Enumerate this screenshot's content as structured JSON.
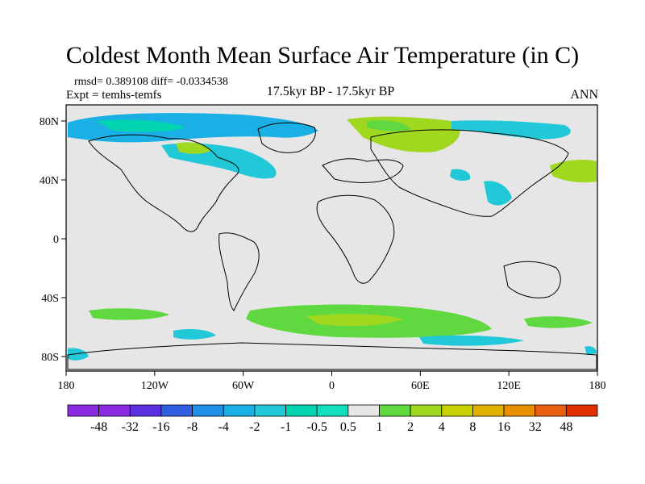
{
  "title": "Coldest Month Mean Surface Air Temperature (in C)",
  "stats": {
    "rmsd_diff": "rmsd= 0.389108 diff= -0.0334538",
    "expt": "Expt = temhs-temfs"
  },
  "subtitle_center": "17.5kyr BP - 17.5kyr BP",
  "subtitle_right": "ANN",
  "map": {
    "lon_labels": [
      "180",
      "120W",
      "60W",
      "0",
      "60E",
      "120E",
      "180"
    ],
    "lat_labels": [
      "80N",
      "40N",
      "0",
      "40S",
      "80S"
    ]
  },
  "colorbar": {
    "labels": [
      "-48",
      "-32",
      "-16",
      "-8",
      "-4",
      "-2",
      "-1",
      "-0.5",
      "0.5",
      "1",
      "2",
      "4",
      "8",
      "16",
      "32",
      "48"
    ],
    "colors": [
      "#8a2be2",
      "#5a30e0",
      "#2f5fe0",
      "#1e90e6",
      "#1ab0e6",
      "#20c8d8",
      "#00d4b0",
      "#10e0c0",
      "#e6e6e6",
      "#60d840",
      "#a0d820",
      "#c8d000",
      "#e0b000",
      "#e89000",
      "#e86010",
      "#e03000"
    ]
  }
}
